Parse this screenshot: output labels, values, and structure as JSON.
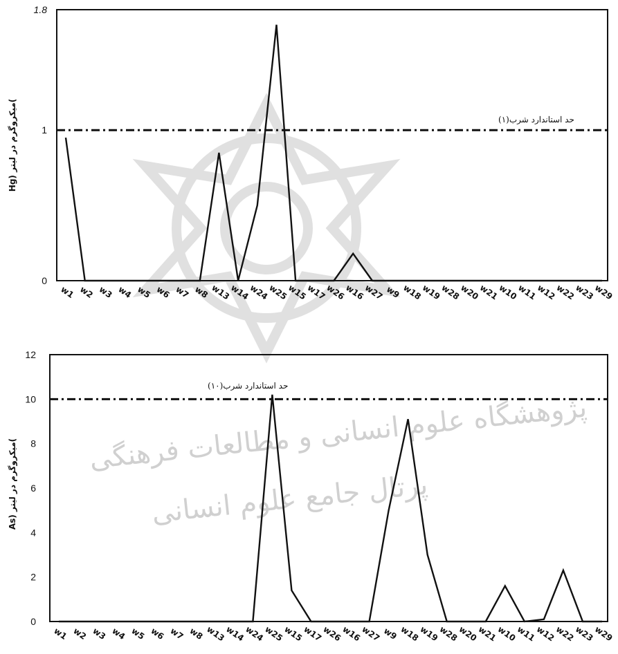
{
  "chart_data": [
    {
      "type": "line",
      "ylabel": "Hg) میکروگرم در لیتر(",
      "ylim": [
        0,
        1.8
      ],
      "yticks": [
        {
          "value": 0,
          "label": "0"
        },
        {
          "value": 1,
          "label": "1"
        },
        {
          "value": 1.8,
          "label": "1.8"
        }
      ],
      "categories": [
        "w1",
        "w2",
        "w3",
        "w4",
        "w5",
        "w6",
        "w7",
        "w8",
        "w13",
        "w14",
        "w24",
        "w25",
        "w15",
        "w17",
        "w26",
        "w16",
        "w27",
        "w9",
        "w18",
        "w19",
        "w28",
        "w20",
        "w21",
        "w10",
        "w11",
        "w12",
        "w22",
        "w23",
        "w29"
      ],
      "series": [
        {
          "values": [
            0.95,
            0,
            0,
            0,
            0,
            0,
            0,
            0,
            0.85,
            0,
            0.5,
            1.7,
            0,
            0,
            0,
            0.18,
            0,
            0,
            0,
            0,
            0,
            0,
            0,
            0,
            0,
            0,
            0,
            0,
            0
          ]
        }
      ],
      "reference_line": {
        "value": 1,
        "label": "حد استاندارد شرب(۱)"
      },
      "grid": false
    },
    {
      "type": "line",
      "ylabel": "As) میکروگرم در لیتر(",
      "ylim": [
        0,
        12
      ],
      "yticks": [
        {
          "value": 0,
          "label": "0"
        },
        {
          "value": 2,
          "label": "2"
        },
        {
          "value": 4,
          "label": "4"
        },
        {
          "value": 6,
          "label": "6"
        },
        {
          "value": 8,
          "label": "8"
        },
        {
          "value": 10,
          "label": "10"
        },
        {
          "value": 12,
          "label": "12"
        }
      ],
      "categories": [
        "w1",
        "w2",
        "w3",
        "w4",
        "w5",
        "w6",
        "w7",
        "w8",
        "w13",
        "w14",
        "w24",
        "w25",
        "w15",
        "w17",
        "w26",
        "w16",
        "w27",
        "w9",
        "w18",
        "w19",
        "w28",
        "w20",
        "w21",
        "w10",
        "w11",
        "w12",
        "w22",
        "w23",
        "w29"
      ],
      "series": [
        {
          "values": [
            0,
            0,
            0,
            0,
            0,
            0,
            0,
            0,
            0,
            0,
            0,
            10.2,
            1.4,
            0,
            0,
            0,
            0,
            5,
            9.1,
            3,
            0,
            0,
            0,
            1.6,
            0,
            0.1,
            2.3,
            0,
            0
          ]
        }
      ],
      "reference_line": {
        "value": 10,
        "label": "حد استاندارد شرب(۱۰)"
      },
      "grid": false
    }
  ],
  "watermark": {
    "line1": "پژوهشگاه علوم انسانی و مطالعات فرهنگی",
    "line2": "پرتال جامع علوم انسانی"
  },
  "colors": {
    "line": "#111111",
    "watermark": "#d0d0d0"
  }
}
